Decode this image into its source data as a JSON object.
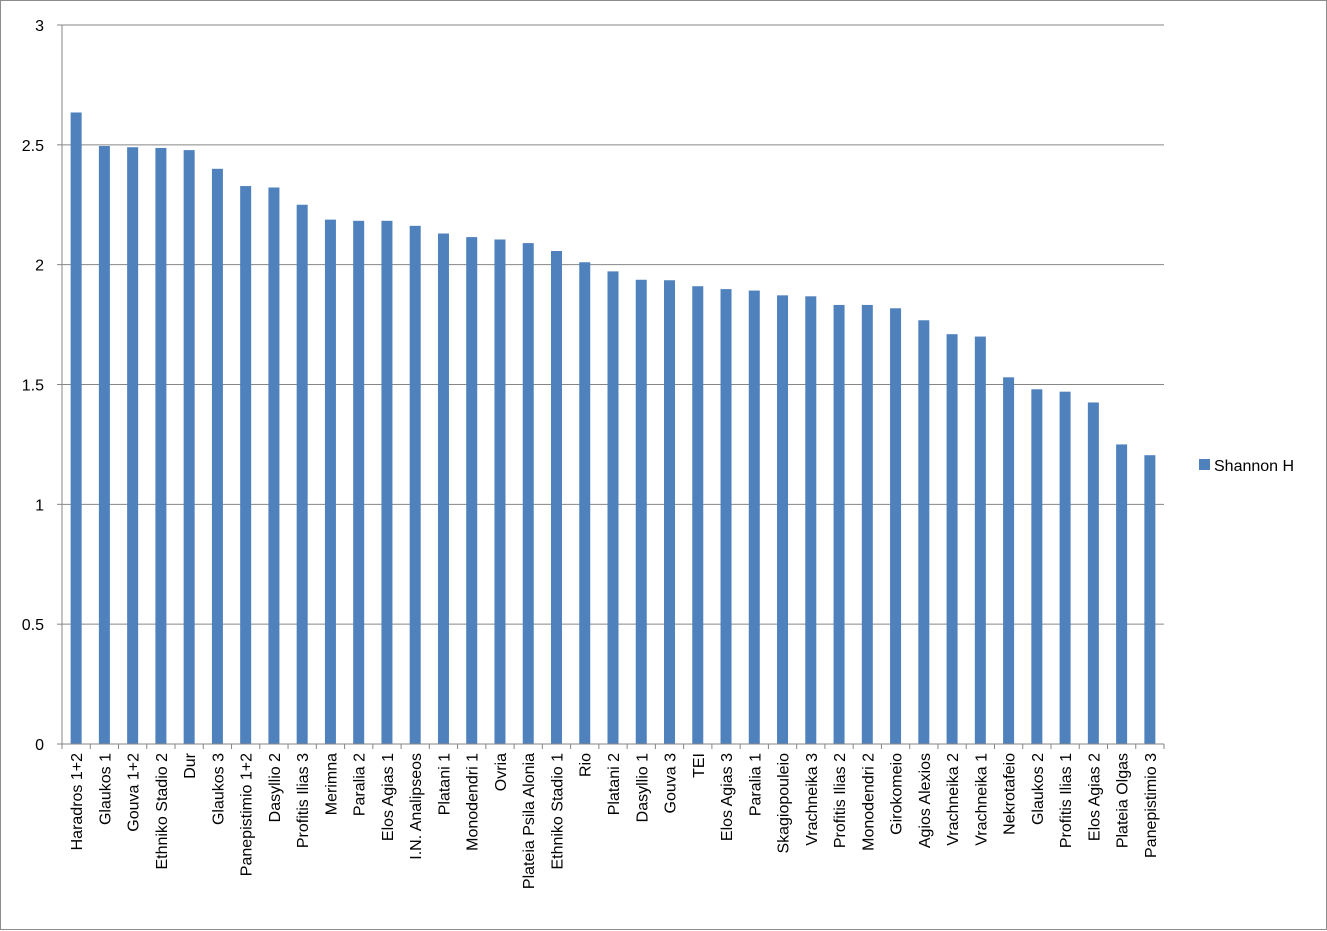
{
  "chart_data": {
    "type": "bar",
    "categories": [
      "Haradros 1+2",
      "Glaukos 1",
      "Gouva 1+2",
      "Ethniko Stadio 2",
      "Dur",
      "Glaukos 3",
      "Panepistimio 1+2",
      "Dasyllio 2",
      "Profitis Ilias 3",
      "Merimna",
      "Paralia 2",
      "Elos Agias 1",
      "I.N. Analipseos",
      "Platani 1",
      "Monodendri 1",
      "Ovria",
      "Plateia Psila Alonia",
      "Ethniko Stadio 1",
      "Rio",
      "Platani 2",
      "Dasyllio 1",
      "Gouva 3",
      "TEI",
      "Elos Agias 3",
      "Paralia 1",
      "Skagiopouleio",
      "Vrachneika 3",
      "Profitis Ilias 2",
      "Monodendri 2",
      "Girokomeio",
      "Agios Alexios",
      "Vrachneika 2",
      "Vrachneika 1",
      "Nekrotafeio",
      "Glaukos 2",
      "Profitis Ilias 1",
      "Elos Agias 2",
      "Plateia Olgas",
      "Panepistimio 3"
    ],
    "series": [
      {
        "name": "Shannon H",
        "color": "#4f81bd",
        "values": [
          2.635,
          2.495,
          2.49,
          2.487,
          2.478,
          2.4,
          2.328,
          2.322,
          2.25,
          2.188,
          2.183,
          2.183,
          2.162,
          2.13,
          2.115,
          2.105,
          2.09,
          2.057,
          2.01,
          1.972,
          1.937,
          1.935,
          1.91,
          1.898,
          1.892,
          1.872,
          1.868,
          1.832,
          1.832,
          1.818,
          1.768,
          1.71,
          1.7,
          1.53,
          1.48,
          1.47,
          1.425,
          1.25,
          1.205
        ]
      }
    ],
    "yticks": [
      "0",
      "0.5",
      "1",
      "1.5",
      "2",
      "2.5",
      "3"
    ],
    "ylim": [
      0,
      3
    ],
    "grid": true,
    "legend_position": "right"
  }
}
